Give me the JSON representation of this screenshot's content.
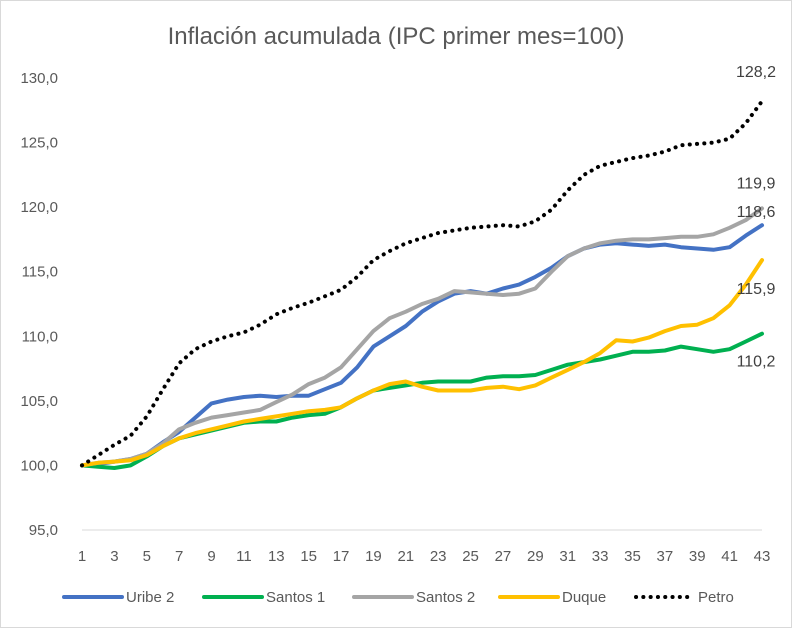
{
  "chart_data": {
    "type": "line",
    "title": "Inflación acumulada (IPC primer mes=100)",
    "xlabel": "",
    "ylabel": "",
    "ylim": [
      95,
      130
    ],
    "yticks": [
      "95,0",
      "100,0",
      "105,0",
      "110,0",
      "115,0",
      "120,0",
      "125,0",
      "130,0"
    ],
    "xticks": [
      "1",
      "3",
      "5",
      "7",
      "9",
      "11",
      "13",
      "15",
      "17",
      "19",
      "21",
      "23",
      "25",
      "27",
      "29",
      "31",
      "33",
      "35",
      "37",
      "39",
      "41",
      "43"
    ],
    "legend_position": "bottom",
    "series": [
      {
        "name": "Uribe 2",
        "color": "#4472C4",
        "style": "solid",
        "end_label": "118,6",
        "values": [
          100.0,
          100.1,
          100.3,
          100.5,
          100.9,
          101.8,
          102.6,
          103.7,
          104.8,
          105.1,
          105.3,
          105.4,
          105.3,
          105.4,
          105.4,
          105.9,
          106.4,
          107.6,
          109.2,
          110.0,
          110.8,
          111.9,
          112.7,
          113.3,
          113.5,
          113.3,
          113.7,
          114.0,
          114.6,
          115.3,
          116.2,
          116.8,
          117.1,
          117.2,
          117.1,
          117.0,
          117.1,
          116.9,
          116.8,
          116.7,
          116.9,
          117.8,
          118.6
        ]
      },
      {
        "name": "Santos 1",
        "color": "#00B050",
        "style": "solid",
        "end_label": "110,2",
        "values": [
          100.0,
          99.9,
          99.8,
          100.0,
          100.7,
          101.5,
          102.1,
          102.4,
          102.7,
          103.0,
          103.3,
          103.4,
          103.4,
          103.7,
          103.9,
          104.0,
          104.5,
          105.2,
          105.8,
          106.0,
          106.2,
          106.4,
          106.5,
          106.5,
          106.5,
          106.8,
          106.9,
          106.9,
          107.0,
          107.4,
          107.8,
          108.0,
          108.2,
          108.5,
          108.8,
          108.8,
          108.9,
          109.2,
          109.0,
          108.8,
          109.0,
          109.6,
          110.2
        ]
      },
      {
        "name": "Santos 2",
        "color": "#A5A5A5",
        "style": "solid",
        "end_label": "119,9",
        "values": [
          100.0,
          100.2,
          100.3,
          100.5,
          100.9,
          101.7,
          102.8,
          103.3,
          103.7,
          103.9,
          104.1,
          104.3,
          104.9,
          105.5,
          106.3,
          106.8,
          107.6,
          109.0,
          110.4,
          111.4,
          111.9,
          112.5,
          112.9,
          113.5,
          113.4,
          113.3,
          113.2,
          113.3,
          113.7,
          115.0,
          116.2,
          116.8,
          117.2,
          117.4,
          117.5,
          117.5,
          117.6,
          117.7,
          117.7,
          117.9,
          118.4,
          119.0,
          119.9
        ]
      },
      {
        "name": "Duque",
        "color": "#FFC000",
        "style": "solid",
        "end_label": "115,9",
        "values": [
          100.0,
          100.2,
          100.3,
          100.4,
          100.8,
          101.5,
          102.1,
          102.5,
          102.8,
          103.1,
          103.4,
          103.6,
          103.8,
          104.0,
          104.2,
          104.3,
          104.5,
          105.2,
          105.8,
          106.3,
          106.5,
          106.1,
          105.8,
          105.8,
          105.8,
          106.0,
          106.1,
          105.9,
          106.2,
          106.8,
          107.4,
          108.0,
          108.7,
          109.7,
          109.6,
          109.9,
          110.4,
          110.8,
          110.9,
          111.4,
          112.4,
          114.0,
          115.9
        ]
      },
      {
        "name": "Petro",
        "color": "#000000",
        "style": "dotted",
        "end_label": "128,2",
        "values": [
          100.0,
          100.8,
          101.6,
          102.3,
          103.8,
          105.9,
          107.9,
          109.0,
          109.6,
          110.0,
          110.3,
          110.9,
          111.7,
          112.2,
          112.6,
          113.1,
          113.6,
          114.6,
          115.9,
          116.6,
          117.2,
          117.6,
          118.0,
          118.2,
          118.4,
          118.5,
          118.6,
          118.5,
          118.9,
          119.8,
          121.3,
          122.5,
          123.2,
          123.5,
          123.8,
          124.0,
          124.3,
          124.8,
          124.9,
          125.0,
          125.3,
          126.5,
          128.2
        ]
      }
    ]
  }
}
